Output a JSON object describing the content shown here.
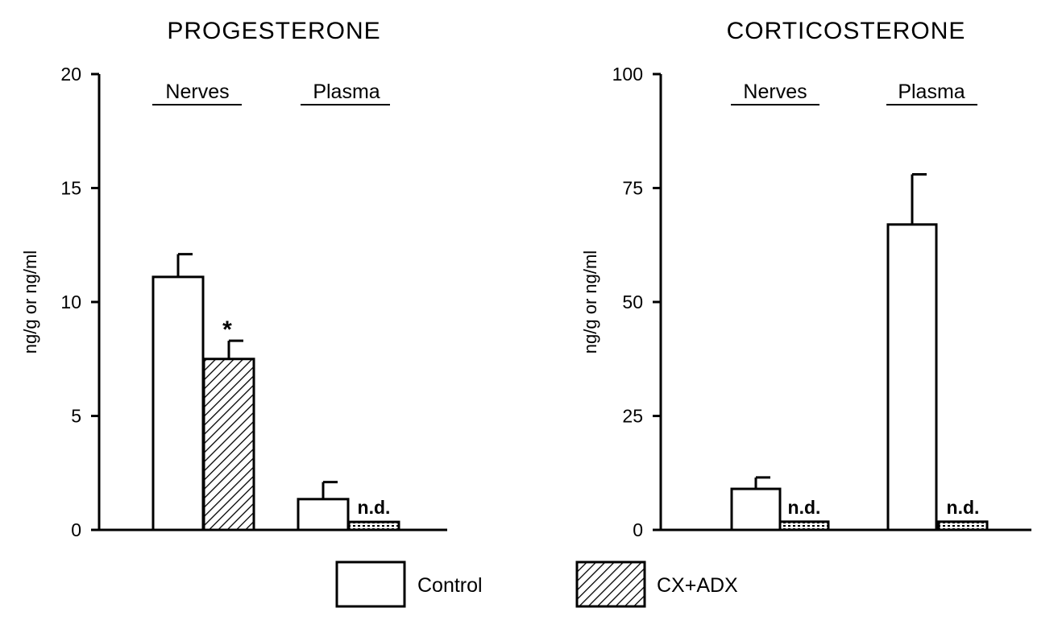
{
  "colors": {
    "ink": "#000000",
    "control_fill": "#ffffff",
    "treated_fill": "hatch"
  },
  "legend": {
    "control_label": "Control",
    "treated_label": "CX+ADX"
  },
  "chart_data": [
    {
      "type": "bar",
      "title": "PROGESTERONE",
      "ylabel": "ng/g or ng/ml",
      "xlabel": "",
      "ylim": [
        0,
        20
      ],
      "yticks": [
        0,
        5,
        10,
        15,
        20
      ],
      "categories": [
        "Nerves",
        "Plasma"
      ],
      "series": [
        {
          "name": "Control",
          "values": [
            11.1,
            1.35
          ],
          "errors": [
            1.0,
            0.75
          ]
        },
        {
          "name": "CX+ADX",
          "values": [
            7.5,
            0.35
          ],
          "errors": [
            0.8,
            0
          ]
        }
      ],
      "annotations": [
        {
          "category": 0,
          "series": 1,
          "text": "*"
        },
        {
          "category": 1,
          "series": 1,
          "text": "n.d."
        }
      ]
    },
    {
      "type": "bar",
      "title": "CORTICOSTERONE",
      "ylabel": "ng/g or ng/ml",
      "xlabel": "",
      "ylim": [
        0,
        100
      ],
      "yticks": [
        0,
        25,
        50,
        75,
        100
      ],
      "categories": [
        "Nerves",
        "Plasma"
      ],
      "series": [
        {
          "name": "Control",
          "values": [
            9,
            67
          ],
          "errors": [
            2.5,
            11
          ]
        },
        {
          "name": "CX+ADX",
          "values": [
            1.8,
            1.8
          ],
          "errors": [
            0,
            0
          ]
        }
      ],
      "annotations": [
        {
          "category": 0,
          "series": 1,
          "text": "n.d."
        },
        {
          "category": 1,
          "series": 1,
          "text": "n.d."
        }
      ]
    }
  ]
}
